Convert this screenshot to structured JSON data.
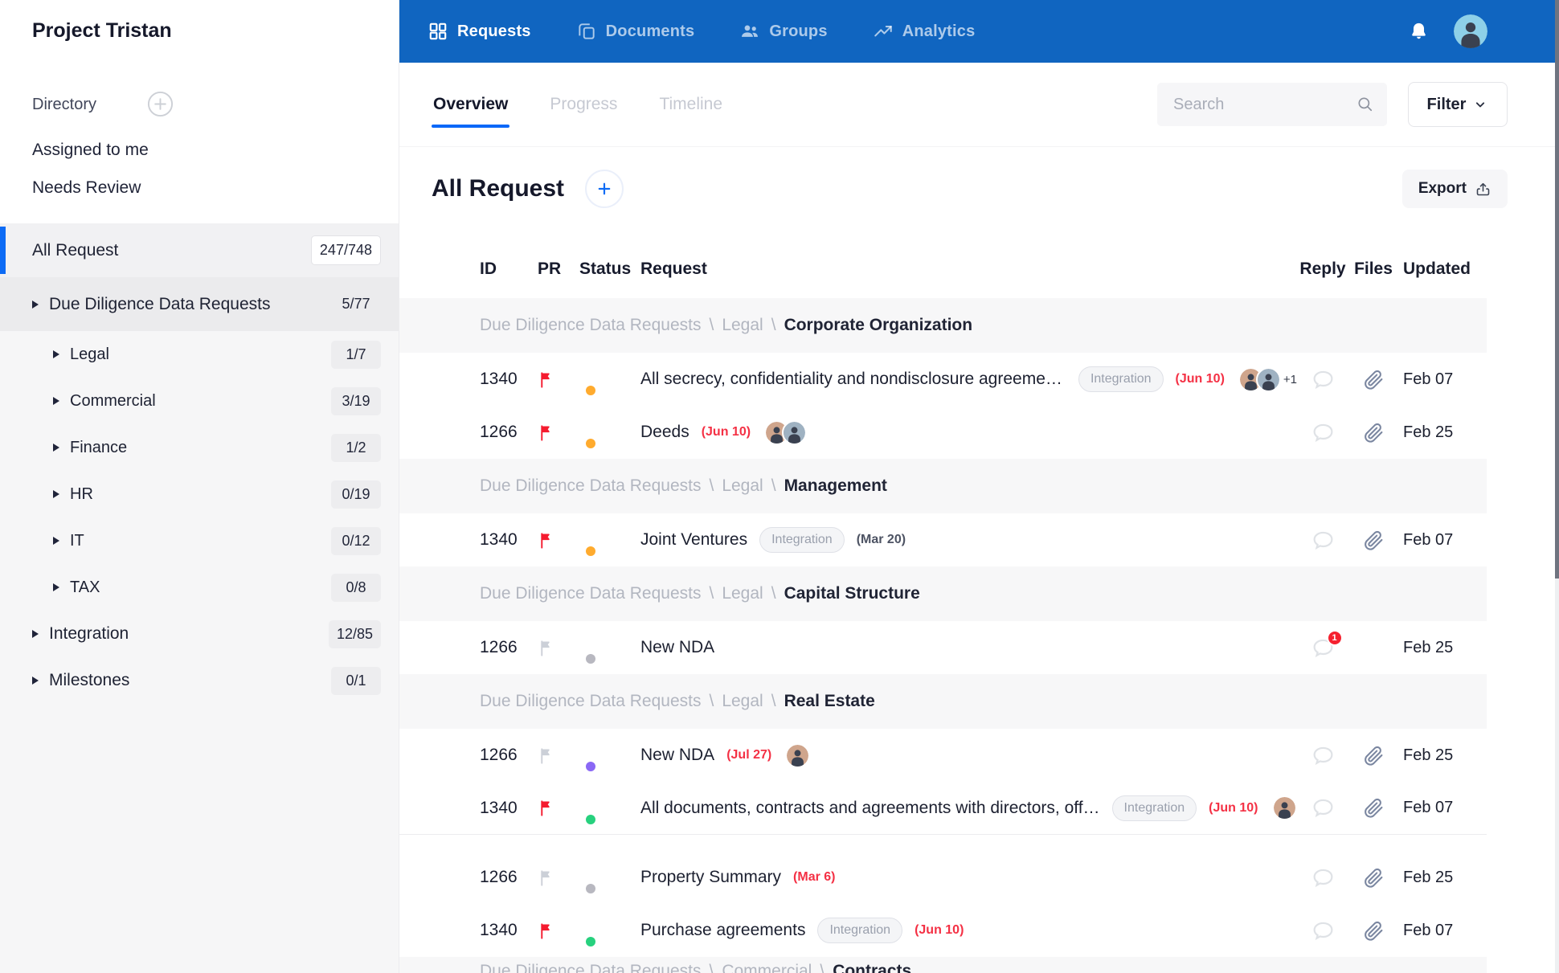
{
  "sidebar": {
    "title": "Project Tristan",
    "directory_label": "Directory",
    "quick_links": [
      "Assigned to me",
      "Needs Review"
    ],
    "tree": [
      {
        "label": "All Request",
        "count": "247/748",
        "level": 0,
        "arrow": false,
        "selected": true,
        "badge": "box",
        "tall": true
      },
      {
        "label": "Due Diligence Data Requests",
        "count": "5/77",
        "level": 0,
        "arrow": true,
        "highlight": true,
        "badge": "flat",
        "tall": true
      },
      {
        "label": "Legal",
        "count": "1/7",
        "level": 1,
        "arrow": true,
        "badge": "soft"
      },
      {
        "label": "Commercial",
        "count": "3/19",
        "level": 1,
        "arrow": true,
        "badge": "soft"
      },
      {
        "label": "Finance",
        "count": "1/2",
        "level": 1,
        "arrow": true,
        "badge": "soft"
      },
      {
        "label": "HR",
        "count": "0/19",
        "level": 1,
        "arrow": true,
        "badge": "soft"
      },
      {
        "label": "IT",
        "count": "0/12",
        "level": 1,
        "arrow": true,
        "badge": "soft"
      },
      {
        "label": "TAX",
        "count": "0/8",
        "level": 1,
        "arrow": true,
        "badge": "soft"
      },
      {
        "label": "Integration",
        "count": "12/85",
        "level": 0,
        "arrow": true,
        "badge": "soft"
      },
      {
        "label": "Milestones",
        "count": "0/1",
        "level": 0,
        "arrow": true,
        "badge": "soft"
      }
    ]
  },
  "topnav": {
    "items": [
      {
        "label": "Requests",
        "icon": "grid-icon",
        "active": true
      },
      {
        "label": "Documents",
        "icon": "documents-icon",
        "active": false
      },
      {
        "label": "Groups",
        "icon": "groups-icon",
        "active": false
      },
      {
        "label": "Analytics",
        "icon": "analytics-icon",
        "active": false
      }
    ]
  },
  "tabs": [
    {
      "label": "Overview",
      "active": true
    },
    {
      "label": "Progress",
      "active": false
    },
    {
      "label": "Timeline",
      "active": false
    }
  ],
  "search": {
    "placeholder": "Search"
  },
  "filter": {
    "label": "Filter"
  },
  "content": {
    "title": "All Request",
    "export_label": "Export"
  },
  "colors": {
    "accent_blue": "#0d6bf5",
    "nav_blue": "#1065c0",
    "alert_red": "#f5212f"
  },
  "table": {
    "headers": {
      "id": "ID",
      "pr": "PR",
      "status": "Status",
      "request": "Request",
      "reply": "Reply",
      "files": "Files",
      "updated": "Updated"
    },
    "rows": [
      {
        "type": "group",
        "path": [
          "Due Diligence Data Requests",
          "Legal"
        ],
        "name": "Corporate Organization"
      },
      {
        "type": "item",
        "id": "1340",
        "flag": "red",
        "status": "orange",
        "title": "All secrecy, confidentiality and nondisclosure agreements",
        "tag": "Integration",
        "due": "(Jun 10)",
        "due_style": "red",
        "avatars": 2,
        "avatar_extra": "+1",
        "reply_badge": "",
        "has_file": true,
        "updated": "Feb 07"
      },
      {
        "type": "item",
        "id": "1266",
        "flag": "red",
        "status": "orange",
        "title": "Deeds",
        "tag": "",
        "due": "(Jun 10)",
        "due_style": "red",
        "avatars": 2,
        "avatar_extra": "",
        "reply_badge": "",
        "has_file": true,
        "updated": "Feb 25"
      },
      {
        "type": "group",
        "path": [
          "Due Diligence Data Requests",
          "Legal"
        ],
        "name": "Management"
      },
      {
        "type": "item",
        "id": "1340",
        "flag": "red",
        "status": "orange",
        "title": "Joint Ventures",
        "tag": "Integration",
        "due": "(Mar 20)",
        "due_style": "gray",
        "avatars": 0,
        "avatar_extra": "",
        "reply_badge": "",
        "has_file": true,
        "updated": "Feb 07"
      },
      {
        "type": "group",
        "path": [
          "Due Diligence Data Requests",
          "Legal"
        ],
        "name": "Capital Structure"
      },
      {
        "type": "item",
        "id": "1266",
        "flag": "gray",
        "status": "gray",
        "title": "New NDA",
        "tag": "",
        "due": "",
        "due_style": "",
        "avatars": 0,
        "avatar_extra": "",
        "reply_badge": "1",
        "has_file": false,
        "updated": "Feb 25"
      },
      {
        "type": "group",
        "path": [
          "Due Diligence Data Requests",
          "Legal"
        ],
        "name": "Real Estate"
      },
      {
        "type": "item",
        "id": "1266",
        "flag": "gray",
        "status": "purple",
        "title": "New NDA",
        "tag": "",
        "due": "(Jul 27)",
        "due_style": "red",
        "avatars": 1,
        "avatar_extra": "",
        "reply_badge": "",
        "has_file": true,
        "updated": "Feb 25"
      },
      {
        "type": "item",
        "id": "1340",
        "flag": "red",
        "status": "green",
        "title": "All documents, contracts and agreements with directors, off…",
        "tag": "Integration",
        "due": "(Jun 10)",
        "due_style": "red",
        "avatars": 1,
        "avatar_extra": "",
        "reply_badge": "",
        "has_file": true,
        "updated": "Feb 07",
        "divider_after": true
      },
      {
        "type": "item",
        "id": "1266",
        "flag": "gray",
        "status": "gray",
        "title": "Property Summary",
        "tag": "",
        "due": "(Mar 6)",
        "due_style": "red",
        "avatars": 0,
        "avatar_extra": "",
        "reply_badge": "",
        "has_file": true,
        "updated": "Feb 25",
        "spacer_before": true
      },
      {
        "type": "item",
        "id": "1340",
        "flag": "red",
        "status": "green",
        "title": "Purchase agreements",
        "tag": "Integration",
        "due": "(Jun 10)",
        "due_style": "red",
        "avatars": 0,
        "avatar_extra": "",
        "reply_badge": "",
        "has_file": true,
        "updated": "Feb 07"
      },
      {
        "type": "group",
        "path": [
          "Due Diligence Data Requests",
          "Commercial"
        ],
        "name": "Contracts",
        "partial": true
      }
    ]
  }
}
